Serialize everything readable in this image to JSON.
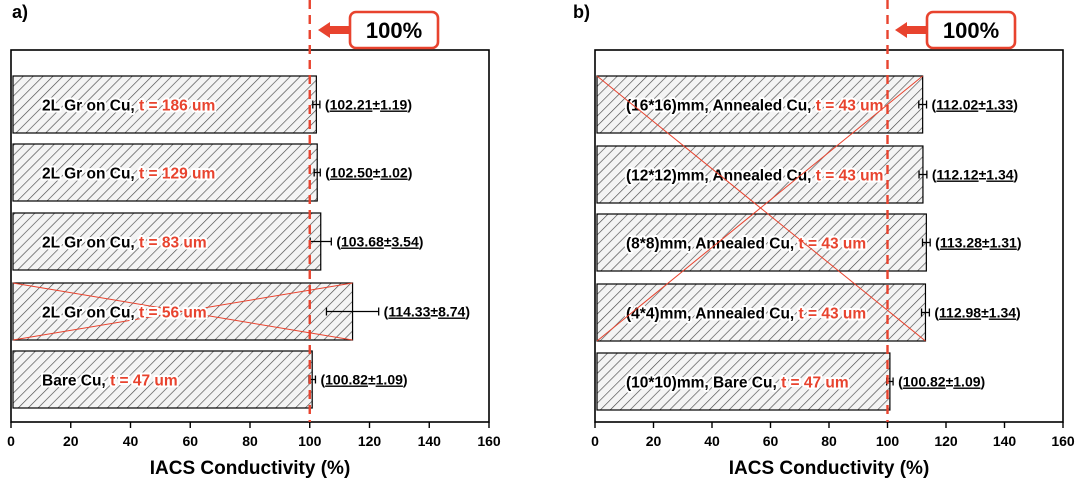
{
  "colors": {
    "accent": "#e8432e",
    "axis": "#000000",
    "bar_fill": "#f4f4f4",
    "hatch": "#4a4a4a",
    "callout_bg": "#ffffff"
  },
  "chart_data": [
    {
      "type": "bar",
      "orientation": "horizontal",
      "panel_label": "a)",
      "xlabel": "IACS Conductivity (%)",
      "xlim": [
        0,
        160
      ],
      "xticks": [
        0,
        20,
        40,
        60,
        80,
        100,
        120,
        140,
        160
      ],
      "reference_line": 100,
      "reference_label": "100%",
      "bars": [
        {
          "label": "2L Gr on Cu, ",
          "thickness": "t = 186 um",
          "value": 102.21,
          "error": 1.19,
          "mean_text": "102.21",
          "err_text": "1.19",
          "crossed": false
        },
        {
          "label": "2L Gr on Cu, ",
          "thickness": "t = 129 um",
          "value": 102.5,
          "error": 1.02,
          "mean_text": "102.50",
          "err_text": "1.02",
          "crossed": false
        },
        {
          "label": "2L Gr on Cu, ",
          "thickness": "t = 83 um",
          "value": 103.68,
          "error": 3.54,
          "mean_text": "103.68",
          "err_text": "3.54",
          "crossed": false
        },
        {
          "label": "2L Gr on Cu, ",
          "thickness": "t = 56 um",
          "value": 114.33,
          "error": 8.74,
          "mean_text": "114.33",
          "err_text": "8.74",
          "crossed": true
        },
        {
          "label": "Bare Cu, ",
          "thickness": "t = 47 um",
          "value": 100.82,
          "error": 1.09,
          "mean_text": "100.82",
          "err_text": "1.09",
          "crossed": false
        }
      ],
      "panel_cross": false
    },
    {
      "type": "bar",
      "orientation": "horizontal",
      "panel_label": "b)",
      "xlabel": "IACS Conductivity (%)",
      "xlim": [
        0,
        160
      ],
      "xticks": [
        0,
        20,
        40,
        60,
        80,
        100,
        120,
        140,
        160
      ],
      "reference_line": 100,
      "reference_label": "100%",
      "bars": [
        {
          "label": "(16*16)mm, Annealed Cu, ",
          "thickness": "t = 43 um",
          "value": 112.02,
          "error": 1.33,
          "mean_text": "112.02",
          "err_text": "1.33",
          "crossed": false
        },
        {
          "label": "(12*12)mm, Annealed Cu, ",
          "thickness": "t = 43 um",
          "value": 112.12,
          "error": 1.34,
          "mean_text": "112.12",
          "err_text": "1.34",
          "crossed": false
        },
        {
          "label": "(8*8)mm, Annealed Cu, ",
          "thickness": "t = 43 um",
          "value": 113.28,
          "error": 1.31,
          "mean_text": "113.28",
          "err_text": "1.31",
          "crossed": false
        },
        {
          "label": "(4*4)mm, Annealed Cu, ",
          "thickness": "t = 43 um",
          "value": 112.98,
          "error": 1.34,
          "mean_text": "112.98",
          "err_text": "1.34",
          "crossed": false
        },
        {
          "label": "(10*10)mm, Bare Cu, ",
          "thickness": "t = 47 um",
          "value": 100.82,
          "error": 1.09,
          "mean_text": "100.82",
          "err_text": "1.09",
          "crossed": false
        }
      ],
      "panel_cross": true
    }
  ]
}
